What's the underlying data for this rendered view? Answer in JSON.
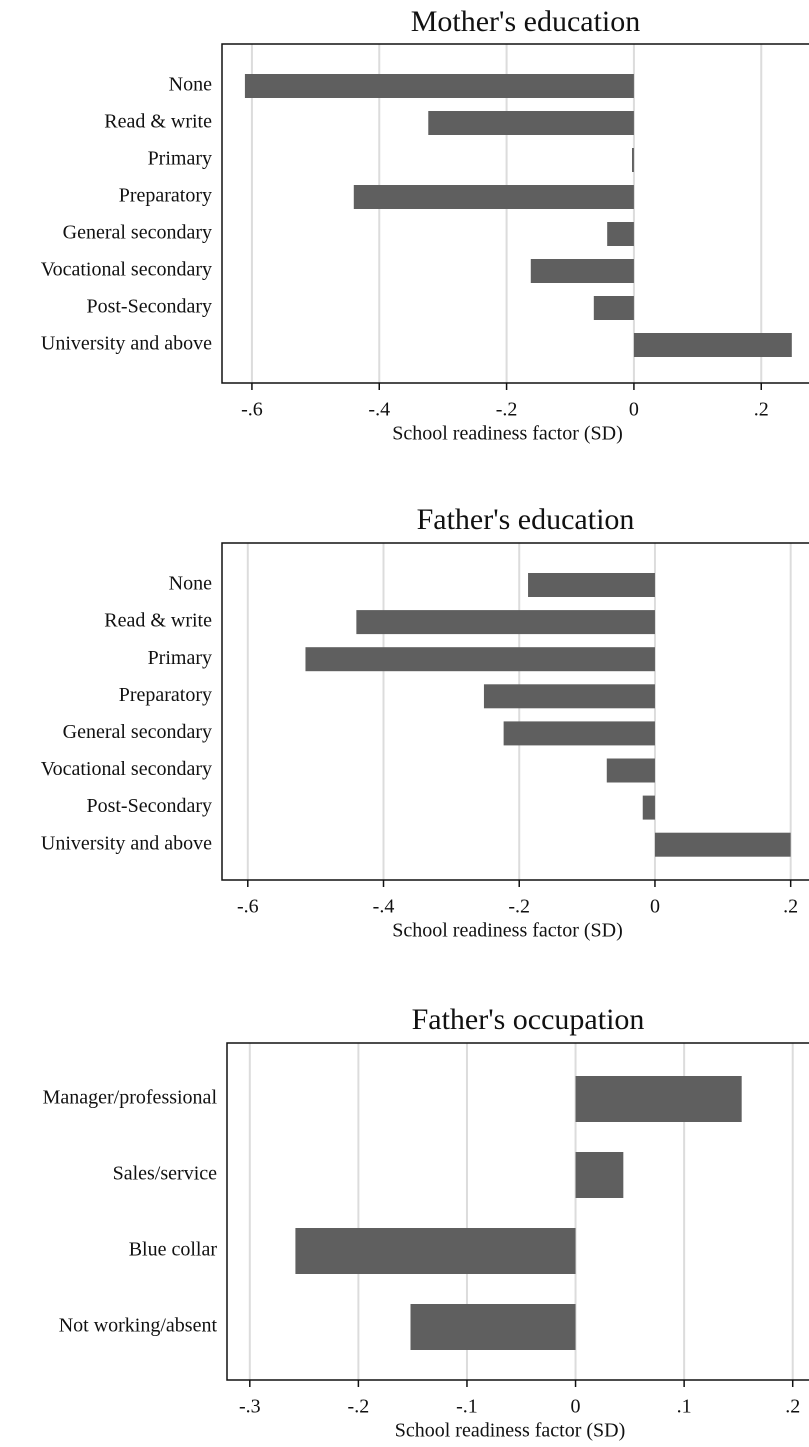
{
  "chart_data": [
    {
      "type": "barh",
      "title": "Mother's education",
      "x_label": "School readiness factor (SD)",
      "categories": [
        "None",
        "Read & write",
        "Primary",
        "Preparatory",
        "General secondary",
        "Vocational secondary",
        "Post-Secondary",
        "University and above"
      ],
      "values": [
        -0.611,
        -0.323,
        -0.003,
        -0.44,
        -0.042,
        -0.162,
        -0.063,
        0.248
      ],
      "color": "#5f5f5f",
      "xlim": [
        -0.647,
        0.275
      ],
      "xticks": [
        {
          "value": -0.6,
          "label": "-.6"
        },
        {
          "value": -0.4,
          "label": "-.4"
        },
        {
          "value": -0.2,
          "label": "-.2"
        },
        0,
        {
          "value": 0.2,
          "label": ".2"
        }
      ],
      "grid": true
    },
    {
      "type": "barh",
      "title": "Father's education",
      "x_label": "School readiness factor (SD)",
      "categories": [
        "None",
        "Read & write",
        "Primary",
        "Preparatory",
        "General secondary",
        "Vocational secondary",
        "Post-Secondary",
        "University and above"
      ],
      "values": [
        -0.187,
        -0.44,
        -0.515,
        -0.252,
        -0.223,
        -0.071,
        -0.018,
        0.2
      ],
      "color": "#5f5f5f",
      "xlim": [
        -0.638,
        0.227
      ],
      "xticks": [
        {
          "value": -0.6,
          "label": "-.6"
        },
        {
          "value": -0.4,
          "label": "-.4"
        },
        {
          "value": -0.2,
          "label": "-.2"
        },
        0,
        {
          "value": 0.2,
          "label": ".2"
        }
      ],
      "grid": true
    },
    {
      "type": "barh",
      "title": "Father's occupation",
      "x_label": "School readiness factor (SD)",
      "categories": [
        "Manager/professional",
        "Sales/service",
        "Blue collar",
        "Not working/absent"
      ],
      "values": [
        0.153,
        0.044,
        -0.258,
        -0.152
      ],
      "color": "#5f5f5f",
      "xlim": [
        -0.321,
        0.215
      ],
      "xticks": [
        {
          "value": -0.3,
          "label": "-.3"
        },
        {
          "value": -0.2,
          "label": "-.2"
        },
        {
          "value": -0.1,
          "label": "-.1"
        },
        0,
        {
          "value": 0.1,
          "label": ".1"
        },
        {
          "value": 0.2,
          "label": ".2"
        }
      ],
      "grid": true
    }
  ]
}
